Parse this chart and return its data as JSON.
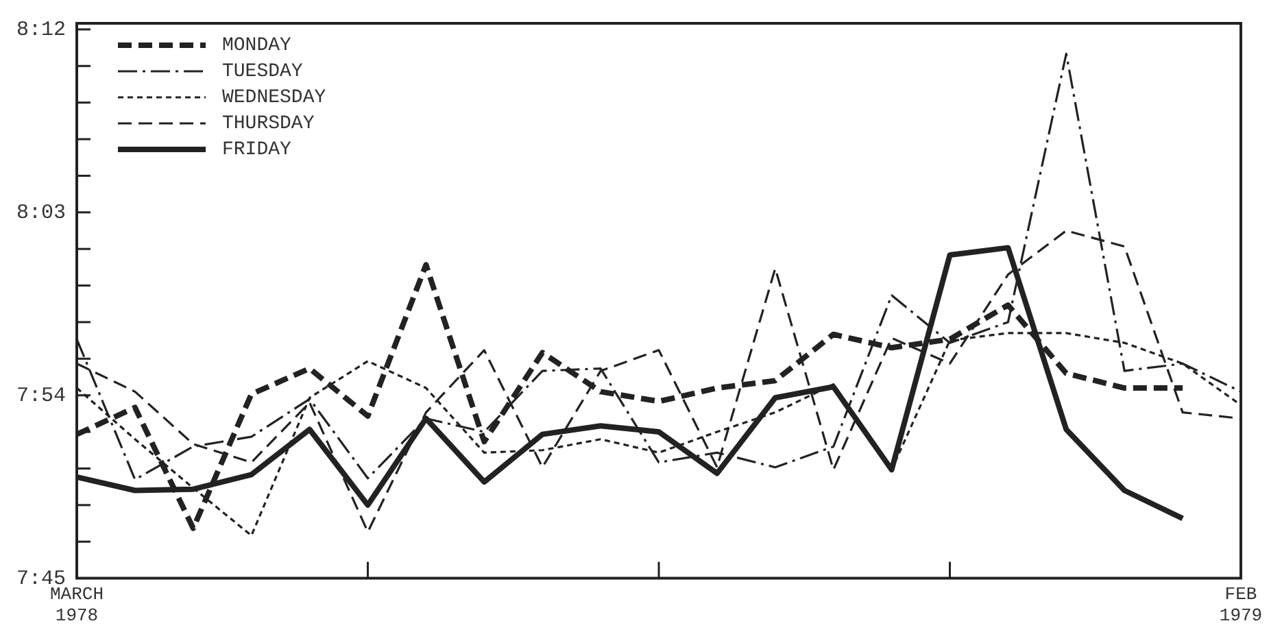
{
  "chart_data": {
    "type": "line",
    "categories": [
      "MARCH 1978",
      null,
      null,
      null,
      null,
      null,
      null,
      null,
      null,
      null,
      null,
      null,
      null,
      null,
      null,
      null,
      null,
      null,
      null,
      null,
      "FEB 1979"
    ],
    "ylim": [
      7.75,
      8.205
    ],
    "yticks": [
      {
        "value": 7.75,
        "label": "7:45"
      },
      {
        "value": 7.78,
        "label": null
      },
      {
        "value": 7.81,
        "label": null
      },
      {
        "value": 7.84,
        "label": null
      },
      {
        "value": 7.87,
        "label": null
      },
      {
        "value": 7.9,
        "label": "7:54"
      },
      {
        "value": 7.93,
        "label": null
      },
      {
        "value": 7.96,
        "label": null
      },
      {
        "value": 7.99,
        "label": null
      },
      {
        "value": 8.02,
        "label": null
      },
      {
        "value": 8.05,
        "label": "8:03"
      },
      {
        "value": 8.08,
        "label": null
      },
      {
        "value": 8.11,
        "label": null
      },
      {
        "value": 8.14,
        "label": null
      },
      {
        "value": 8.17,
        "label": null
      },
      {
        "value": 8.2,
        "label": "8:12"
      }
    ],
    "grid": false,
    "legend": "top left",
    "marker": "none",
    "series": [
      {
        "name": "MONDAY",
        "color": "#222222",
        "line_style": "dashed",
        "values": [
          7.868,
          7.89,
          7.791,
          7.901,
          7.922,
          7.883,
          8.007,
          7.862,
          7.935,
          7.903,
          7.895,
          7.906,
          7.912,
          7.95,
          7.939,
          7.946,
          7.974,
          7.918,
          7.906,
          7.906,
          null
        ]
      },
      {
        "name": "TUESDAY",
        "color": "#222222",
        "line_style": "dashdot",
        "values": [
          7.946,
          7.831,
          7.858,
          7.866,
          7.897,
          7.832,
          7.881,
          7.87,
          7.92,
          7.922,
          7.845,
          7.853,
          7.841,
          7.858,
          7.982,
          7.943,
          7.96,
          8.18,
          7.92,
          7.926,
          7.903
        ]
      },
      {
        "name": "WEDNESDAY",
        "color": "#222222",
        "line_style": "dotted",
        "values": [
          7.906,
          7.864,
          7.824,
          7.785,
          7.898,
          7.928,
          7.906,
          7.853,
          7.855,
          7.864,
          7.853,
          7.87,
          7.886,
          7.909,
          7.839,
          7.945,
          7.951,
          7.951,
          7.943,
          7.926,
          7.892
        ]
      },
      {
        "name": "THURSDAY",
        "color": "#222222",
        "line_style": "dashed",
        "values": [
          7.926,
          7.903,
          7.86,
          7.845,
          7.894,
          7.788,
          7.886,
          7.937,
          7.841,
          7.92,
          7.937,
          7.841,
          8.004,
          7.839,
          7.947,
          7.926,
          7.999,
          8.035,
          8.022,
          7.886,
          7.881
        ]
      },
      {
        "name": "FRIDAY",
        "color": "#222222",
        "line_style": "solid",
        "values": [
          7.833,
          7.822,
          7.823,
          7.835,
          7.872,
          7.81,
          7.881,
          7.829,
          7.868,
          7.875,
          7.87,
          7.836,
          7.898,
          7.907,
          7.839,
          8.015,
          8.021,
          7.872,
          7.822,
          7.799,
          null
        ]
      }
    ]
  }
}
